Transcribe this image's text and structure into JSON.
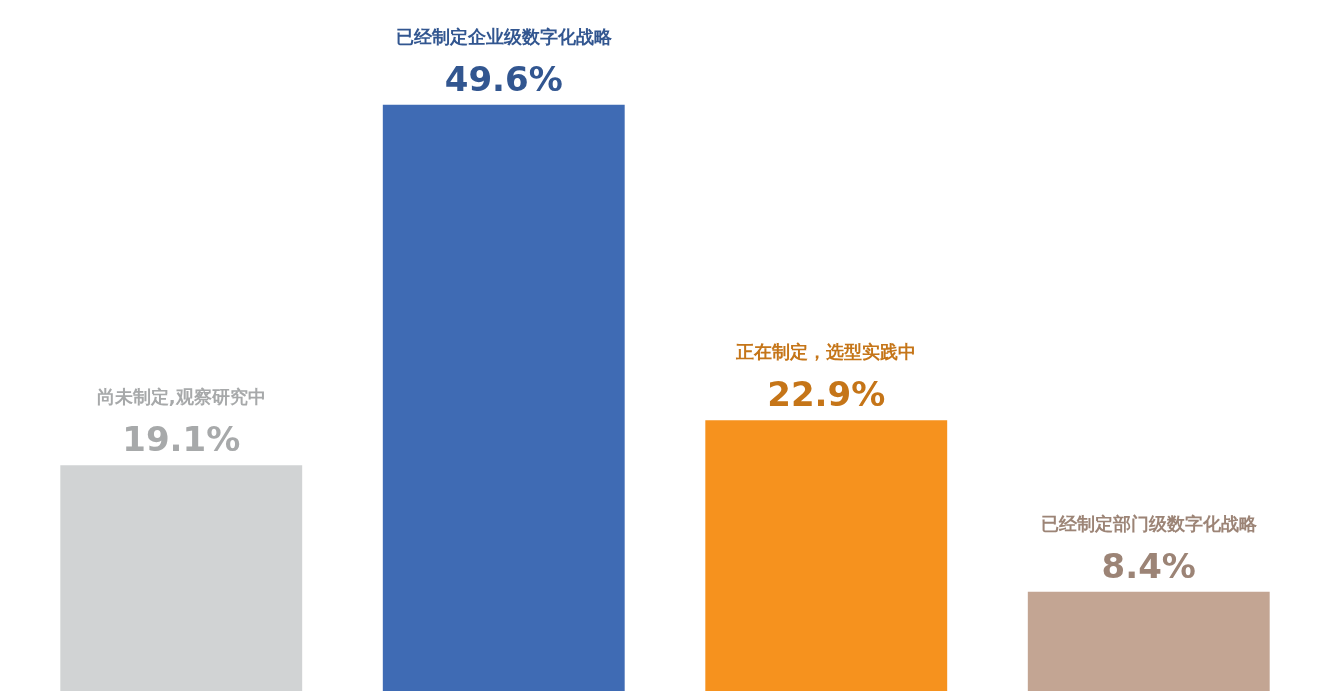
{
  "chart_data": {
    "type": "bar",
    "categories": [
      null,
      null,
      null,
      null
    ],
    "values": [
      19.1,
      49.6,
      22.9,
      8.4
    ],
    "value_labels": [
      "19.1%",
      "49.6%",
      "22.9%",
      "8.4%"
    ],
    "annotations": [
      "尚未制定,观察研究中",
      "已经制定企业级数字化战略",
      "正在制定，选型实践中",
      "已经制定部门级数字化战略"
    ],
    "colors": [
      "#d1d3d4",
      "#3f6bb4",
      "#f6921e",
      "#c3a593"
    ],
    "legend": false,
    "tick_labels": false
  }
}
